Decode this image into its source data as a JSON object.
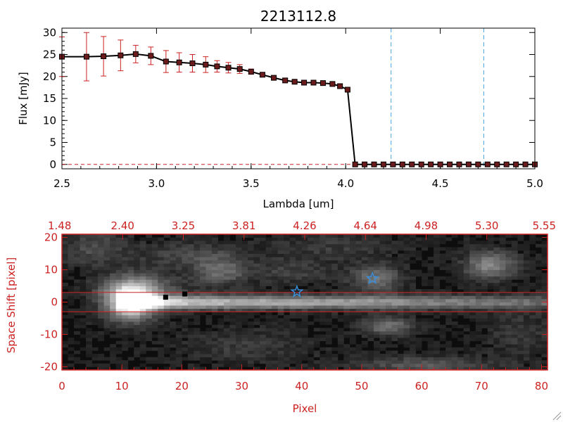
{
  "colors": {
    "axis_top": "#000000",
    "axis_bottom": "#cc2222",
    "errorbar": "#cc2222",
    "marker_fill": "#6b1b1b",
    "dashed": "#4aa3df",
    "star": "#3a8fd8",
    "image_bg": "#0d0d0d"
  },
  "chart_data": [
    {
      "type": "line",
      "title": "2213112.8",
      "xlabel": "Lambda [um]",
      "ylabel": "Flux [mJy]",
      "xlim": [
        2.5,
        5.0
      ],
      "ylim": [
        -1,
        31
      ],
      "xticks": [
        "2.5",
        "3.0",
        "3.5",
        "4.0",
        "4.5",
        "5.0"
      ],
      "yticks": [
        "0",
        "5",
        "10",
        "15",
        "20",
        "25",
        "30"
      ],
      "vlines": [
        4.24,
        4.73
      ],
      "series": [
        {
          "name": "flux",
          "x": [
            2.5,
            2.63,
            2.72,
            2.81,
            2.89,
            2.97,
            3.05,
            3.12,
            3.19,
            3.26,
            3.32,
            3.38,
            3.44,
            3.5,
            3.56,
            3.62,
            3.68,
            3.73,
            3.78,
            3.83,
            3.88,
            3.93,
            3.97,
            4.01,
            4.05,
            4.1,
            4.15,
            4.2,
            4.25,
            4.3,
            4.35,
            4.4,
            4.45,
            4.5,
            4.55,
            4.6,
            4.65,
            4.7,
            4.75,
            4.8,
            4.85,
            4.9,
            4.95,
            5.0
          ],
          "y": [
            24.5,
            24.5,
            24.6,
            24.8,
            25.1,
            24.7,
            23.4,
            23.2,
            23.0,
            22.7,
            22.3,
            22.0,
            21.7,
            21.1,
            20.4,
            19.7,
            19.1,
            18.8,
            18.6,
            18.6,
            18.5,
            18.3,
            17.8,
            17.0,
            0.0,
            0.0,
            0.0,
            0.0,
            0.0,
            0.0,
            0.0,
            0.0,
            0.0,
            0.0,
            0.0,
            0.0,
            0.0,
            0.0,
            0.0,
            0.0,
            0.0,
            0.0,
            0.0,
            0.0
          ],
          "err": [
            4.5,
            5.5,
            4.5,
            3.5,
            2.0,
            2.0,
            2.5,
            2.2,
            2.0,
            1.8,
            1.3,
            1.2,
            1.0,
            0.6,
            0.5,
            0.5,
            0.4,
            0.4,
            0.3,
            0.3,
            0.3,
            0.3,
            0.3,
            0.3,
            0.1,
            0.1,
            0.1,
            0.1,
            0.1,
            0.1,
            0.1,
            0.1,
            0.1,
            0.1,
            0.1,
            0.1,
            0.1,
            0.1,
            0.1,
            0.1,
            0.1,
            0.1,
            0.1,
            0.1
          ]
        }
      ]
    },
    {
      "type": "heatmap",
      "xlabel": "Pixel",
      "ylabel": "Space Shift [pixel]",
      "xlim": [
        0,
        81
      ],
      "ylim": [
        -21,
        21
      ],
      "xticks": [
        "0",
        "10",
        "20",
        "30",
        "40",
        "50",
        "60",
        "70",
        "80"
      ],
      "yticks": [
        "-20",
        "-10",
        "0",
        "10",
        "20"
      ],
      "top_ticks": [
        "1.48",
        "2.40",
        "3.25",
        "3.81",
        "4.26",
        "4.64",
        "4.98",
        "5.30",
        "5.55"
      ],
      "hlines": [
        3,
        -3
      ],
      "trace": {
        "y": 0,
        "x_start": 9,
        "x_end": 80,
        "peak_x": 11
      },
      "blobs": [
        {
          "x": 11,
          "y": 0,
          "strength": 1.0,
          "sx": 3,
          "sy": 4
        },
        {
          "x": 13,
          "y": 4,
          "strength": 0.25,
          "sx": 5,
          "sy": 3
        },
        {
          "x": 21,
          "y": 14,
          "strength": 0.18,
          "sx": 6,
          "sy": 3
        },
        {
          "x": 26,
          "y": 9,
          "strength": 0.3,
          "sx": 3,
          "sy": 3
        },
        {
          "x": 38,
          "y": 9,
          "strength": 0.15,
          "sx": 5,
          "sy": 3
        },
        {
          "x": 52,
          "y": 7,
          "strength": 0.35,
          "sx": 3,
          "sy": 3
        },
        {
          "x": 54,
          "y": -8,
          "strength": 0.35,
          "sx": 3,
          "sy": 2
        },
        {
          "x": 71,
          "y": 11,
          "strength": 0.45,
          "sx": 3,
          "sy": 3
        },
        {
          "x": 60,
          "y": -20,
          "strength": 0.25,
          "sx": 8,
          "sy": 2
        },
        {
          "x": 5,
          "y": 16,
          "strength": 0.2,
          "sx": 4,
          "sy": 4
        },
        {
          "x": 45,
          "y": 17,
          "strength": 0.12,
          "sx": 8,
          "sy": 3
        },
        {
          "x": 30,
          "y": -14,
          "strength": 0.12,
          "sx": 8,
          "sy": 4
        },
        {
          "x": 76,
          "y": -10,
          "strength": 0.12,
          "sx": 4,
          "sy": 5
        }
      ],
      "markers": [
        {
          "kind": "square",
          "x": 17.3,
          "y": 1.5
        },
        {
          "kind": "square",
          "x": 20.5,
          "y": 2.5
        },
        {
          "kind": "star",
          "x": 39.2,
          "y": 3.2
        },
        {
          "kind": "star",
          "x": 51.8,
          "y": 7.3
        }
      ]
    }
  ]
}
